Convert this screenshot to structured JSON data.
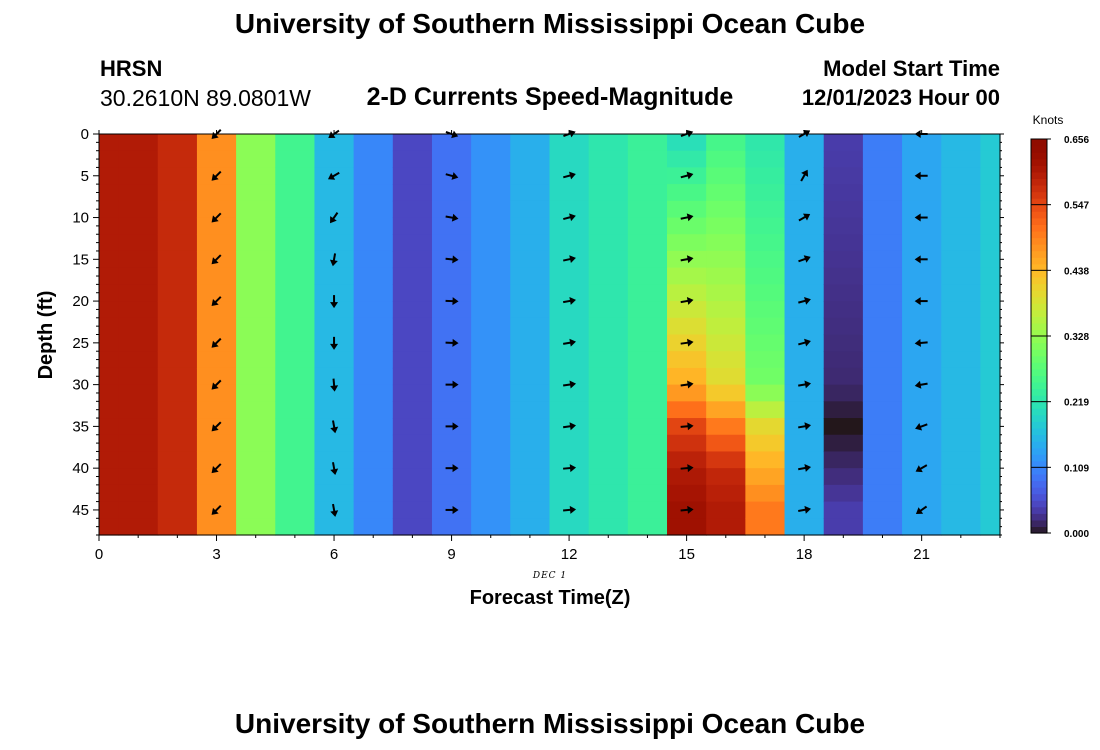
{
  "header": {
    "title": "University of Southern Mississippi Ocean Cube",
    "station": "HRSN",
    "coords": "30.2610N  89.0801W",
    "subtitle": "2-D Currents Speed-Magnitude",
    "model_start_label": "Model Start Time",
    "model_start_value": "12/01/2023 Hour 00"
  },
  "footer": {
    "title": "University of Southern Mississippi Ocean Cube"
  },
  "chart_data": {
    "type": "heatmap",
    "xlabel": "Forecast Time(Z)",
    "ylabel": "Depth (ft)",
    "date_label": "DEC 1",
    "xlim": [
      0,
      23
    ],
    "ylim": [
      48,
      0
    ],
    "x_ticks": [
      0,
      3,
      6,
      9,
      12,
      15,
      18,
      21
    ],
    "y_ticks": [
      0,
      5,
      10,
      15,
      20,
      25,
      30,
      35,
      40,
      45
    ],
    "colorbar": {
      "label": "Knots",
      "range": [
        0,
        0.656
      ],
      "ticks": [
        "0.000",
        "0.109",
        "0.219",
        "0.328",
        "0.438",
        "0.547",
        "0.656"
      ]
    },
    "speed_by_hour": [
      0.6,
      0.6,
      0.58,
      0.48,
      0.32,
      0.25,
      0.16,
      0.11,
      0.05,
      0.09,
      0.12,
      0.15,
      0.2,
      0.22,
      0.24,
      0.26,
      0.23,
      0.2,
      0.15,
      0.05,
      0.1,
      0.14,
      0.16,
      0.18
    ],
    "speed_by_hour_and_depth": [
      {
        "hour": 15,
        "depths": [
          0,
          30,
          35,
          40,
          45
        ],
        "speeds": [
          0.2,
          0.45,
          0.55,
          0.6,
          0.62
        ]
      },
      {
        "hour": 16,
        "depths": [
          0,
          30,
          35,
          40,
          45
        ],
        "speeds": [
          0.25,
          0.4,
          0.5,
          0.58,
          0.6
        ]
      },
      {
        "hour": 17,
        "depths": [
          0,
          30,
          35,
          40,
          45
        ],
        "speeds": [
          0.22,
          0.3,
          0.4,
          0.45,
          0.5
        ]
      },
      {
        "hour": 19,
        "depths": [
          0,
          30,
          35,
          40,
          45
        ],
        "speeds": [
          0.04,
          0.02,
          0.0,
          0.02,
          0.04
        ]
      }
    ],
    "vector_depths": [
      0,
      5,
      10,
      15,
      20,
      25,
      30,
      35,
      40,
      45
    ],
    "vectors": [
      {
        "hour": 3,
        "directions_deg": [
          225,
          225,
          225,
          225,
          225,
          225,
          225,
          225,
          225,
          225
        ]
      },
      {
        "hour": 6,
        "directions_deg": [
          235,
          240,
          215,
          190,
          180,
          180,
          175,
          170,
          170,
          170
        ]
      },
      {
        "hour": 9,
        "directions_deg": [
          110,
          105,
          100,
          95,
          92,
          92,
          90,
          90,
          90,
          90
        ]
      },
      {
        "hour": 12,
        "directions_deg": [
          70,
          75,
          75,
          78,
          80,
          80,
          82,
          82,
          85,
          85
        ]
      },
      {
        "hour": 15,
        "directions_deg": [
          70,
          75,
          78,
          80,
          80,
          82,
          82,
          85,
          85,
          85
        ]
      },
      {
        "hour": 18,
        "directions_deg": [
          60,
          30,
          60,
          70,
          75,
          75,
          80,
          80,
          80,
          80
        ]
      },
      {
        "hour": 21,
        "directions_deg": [
          270,
          270,
          270,
          270,
          270,
          265,
          260,
          250,
          240,
          235
        ]
      }
    ]
  }
}
